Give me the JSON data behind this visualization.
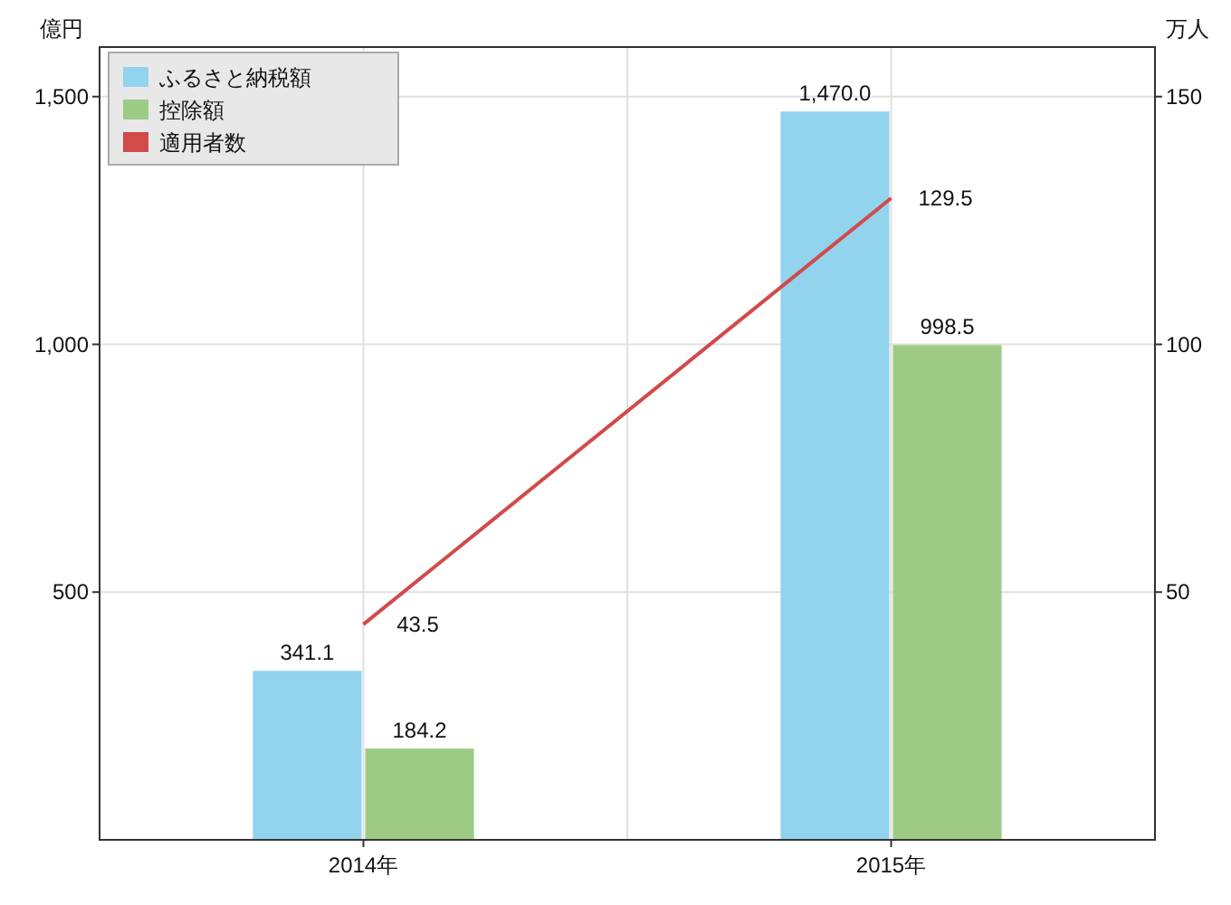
{
  "chart_data": {
    "type": "bar",
    "categories": [
      "2014年",
      "2015年"
    ],
    "ylabel": "億円",
    "y2label": "万人",
    "ylim": [
      0,
      1600
    ],
    "yticks": [
      500,
      {
        "value": 1000,
        "label": "1,000"
      },
      {
        "value": 1500,
        "label": "1,500"
      }
    ],
    "y2lim": [
      0,
      160
    ],
    "y2ticks": [
      50,
      100,
      150
    ],
    "grid": true,
    "legend": "top left",
    "series": [
      {
        "name": "ふるさと納税額",
        "color": "#92d3ee",
        "values": [
          341.1,
          1470.0
        ],
        "value_labels": [
          "341.1",
          "1,470.0"
        ]
      },
      {
        "name": "控除額",
        "color": "#9dcb85",
        "values": [
          184.2,
          998.5
        ],
        "value_labels": [
          "184.2",
          "998.5"
        ]
      },
      {
        "name": "適用者数",
        "type": "line",
        "axis": "y2",
        "color": "#d24a4a",
        "values": [
          43.5,
          129.5
        ],
        "value_labels": [
          "43.5",
          "129.5"
        ]
      }
    ]
  }
}
